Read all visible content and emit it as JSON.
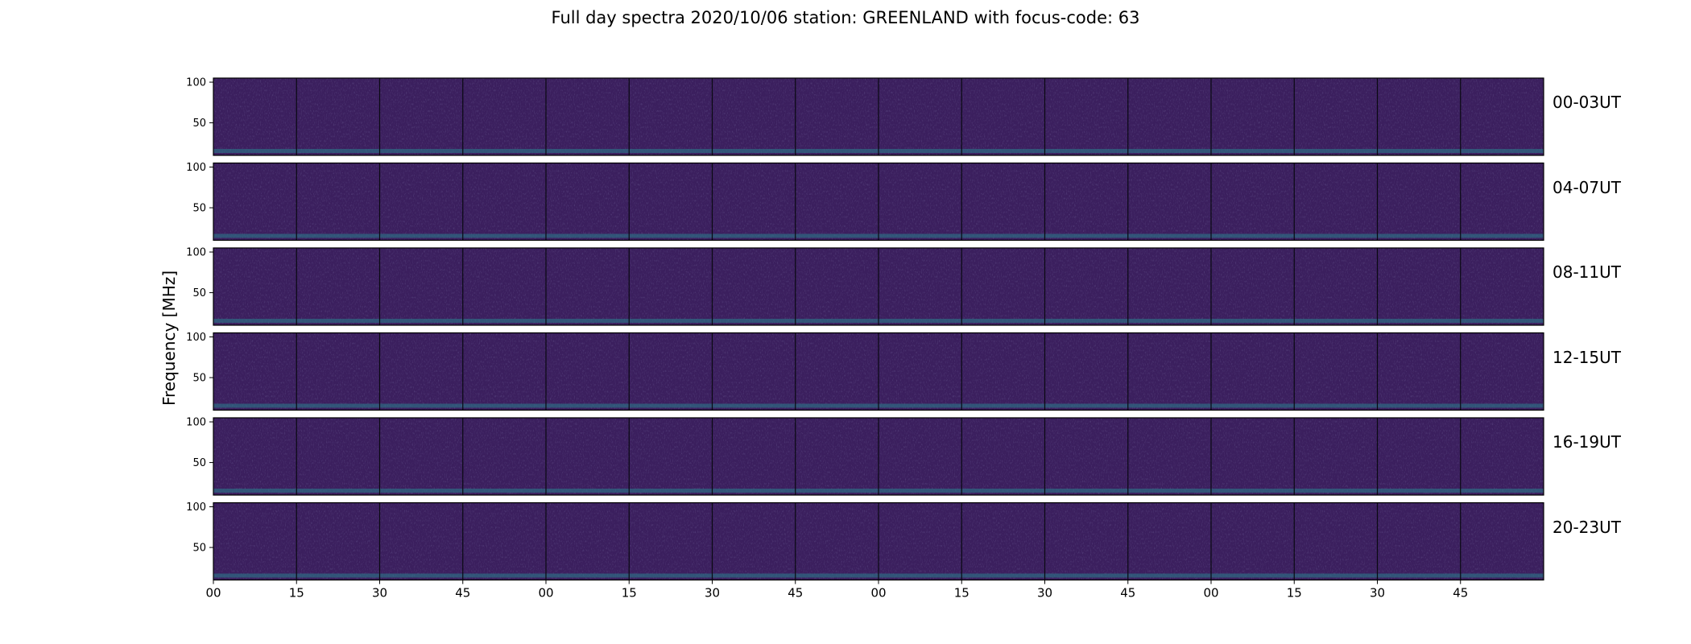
{
  "chart_data": {
    "type": "heatmap",
    "title": "Full day spectra 2020/10/06 station: GREENLAND with focus-code: 63",
    "ylabel": "Frequency [MHz]",
    "xlabel": "",
    "ylim": [
      10,
      105
    ],
    "y_ticks": [
      "100",
      "50"
    ],
    "x_ticks": [
      "00",
      "15",
      "30",
      "45",
      "00",
      "15",
      "30",
      "45",
      "00",
      "15",
      "30",
      "45",
      "00",
      "15",
      "30",
      "45"
    ],
    "colormap": "viridis",
    "panels_per_row": 16,
    "rows": [
      {
        "label": "00-03UT"
      },
      {
        "label": "04-07UT"
      },
      {
        "label": "08-11UT"
      },
      {
        "label": "12-15UT"
      },
      {
        "label": "16-19UT"
      },
      {
        "label": "20-23UT"
      }
    ]
  }
}
